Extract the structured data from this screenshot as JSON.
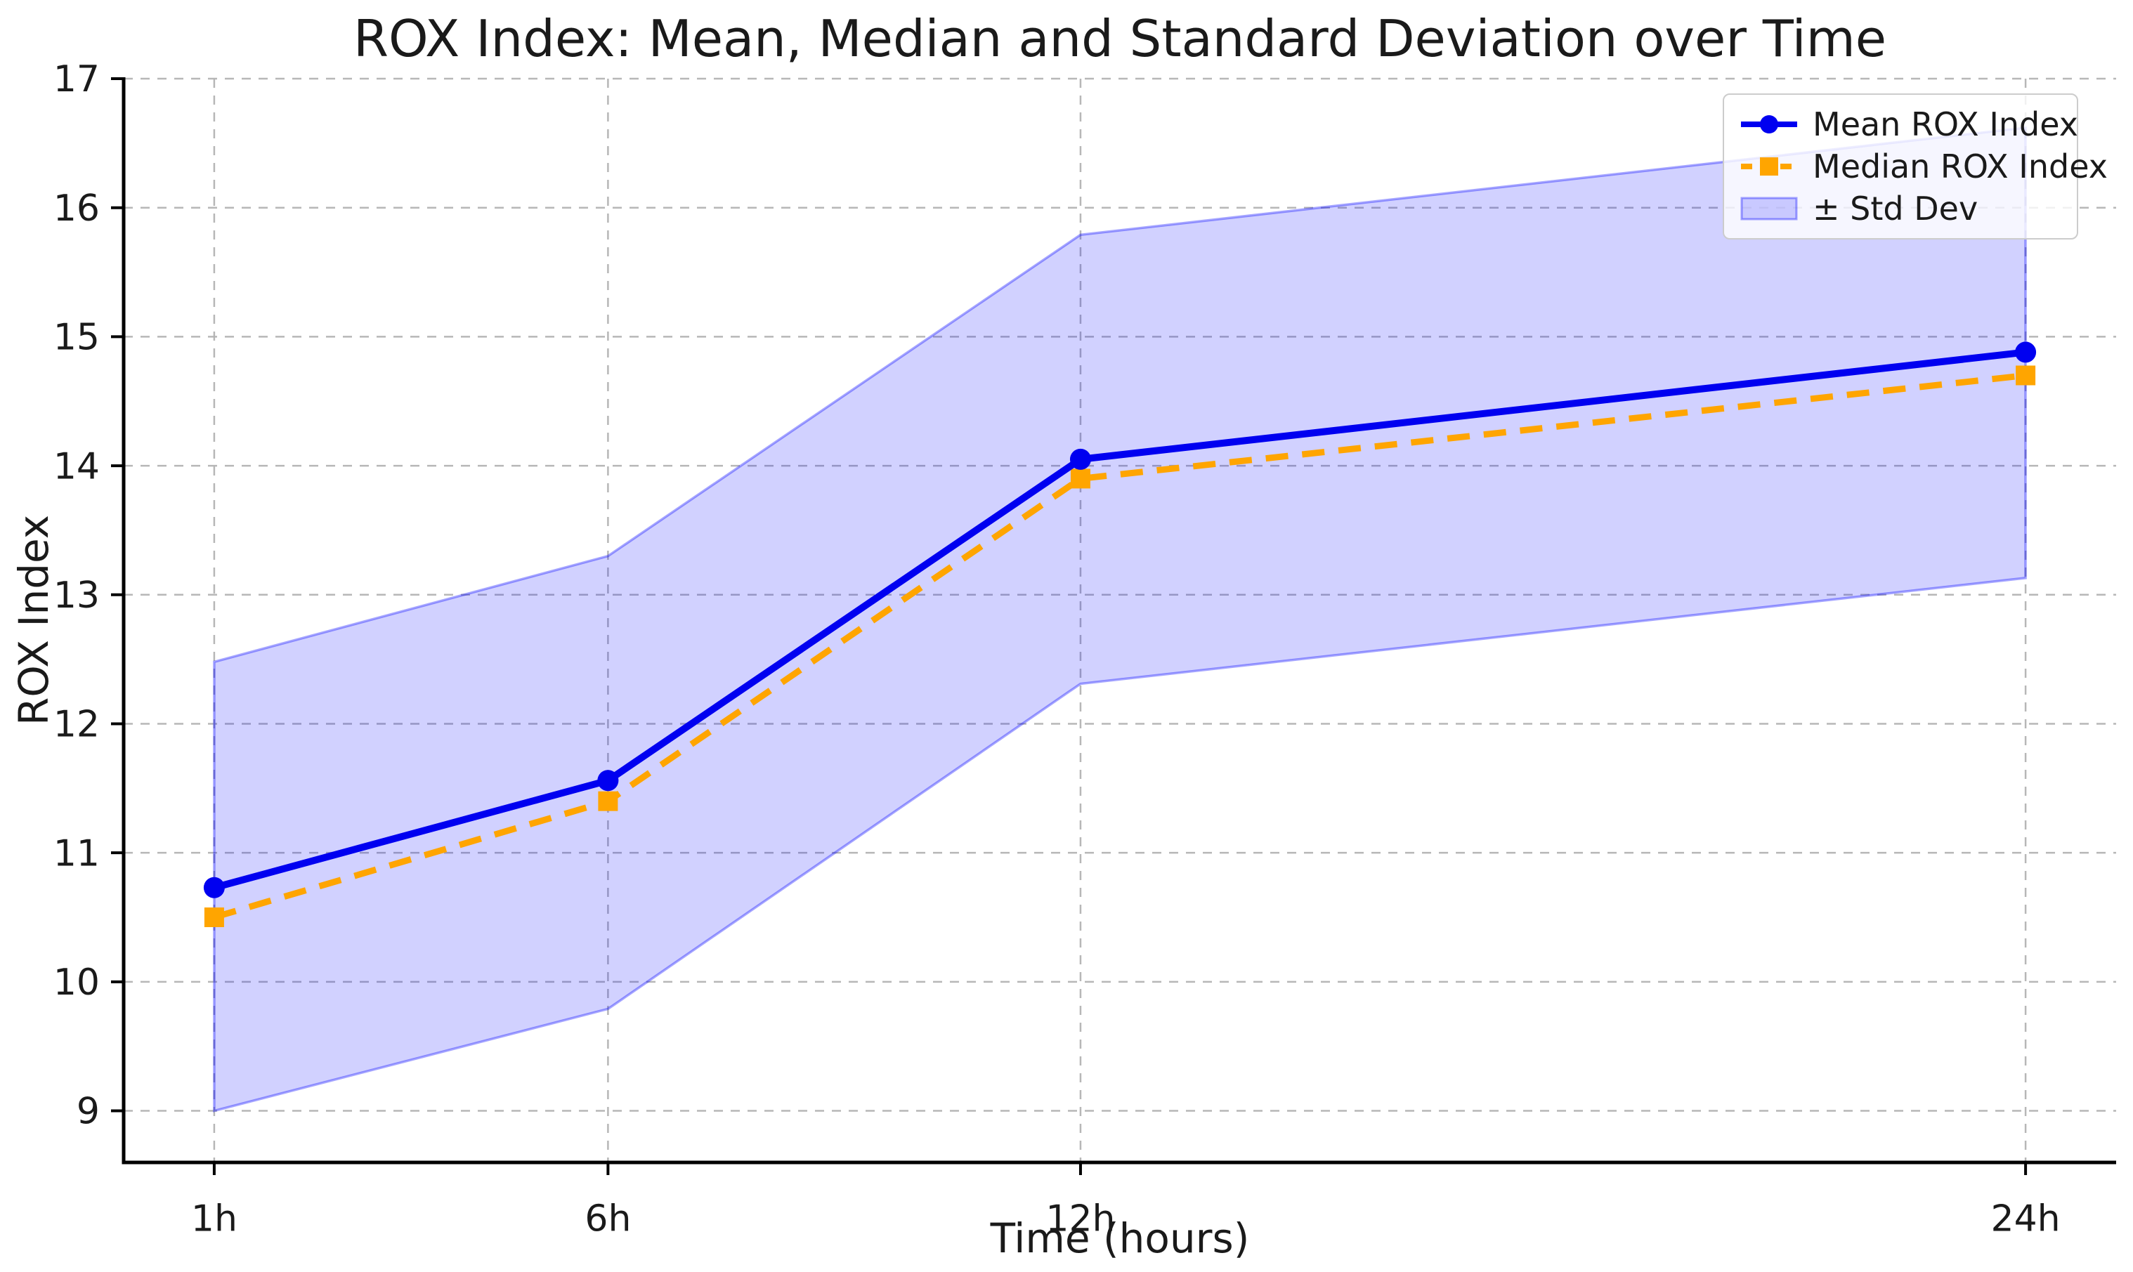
{
  "chart_data": {
    "type": "line",
    "title": "ROX Index: Mean, Median and Standard Deviation over Time",
    "xlabel": "Time (hours)",
    "ylabel": "ROX Index",
    "categories": [
      "1h",
      "6h",
      "12h",
      "24h"
    ],
    "x_hours": [
      1,
      6,
      12,
      24
    ],
    "series": [
      {
        "name": "Mean ROX Index",
        "values": [
          10.73,
          11.56,
          14.05,
          14.88
        ],
        "color": "#0000f0",
        "linestyle": "solid",
        "marker": "circle"
      },
      {
        "name": "Median ROX Index",
        "values": [
          10.5,
          11.4,
          13.9,
          14.7
        ],
        "color": "#ffa500",
        "linestyle": "dashed",
        "marker": "square"
      }
    ],
    "band": {
      "name": "± Std Dev",
      "upper": [
        12.48,
        13.3,
        15.79,
        16.62
      ],
      "lower": [
        9.0,
        9.79,
        12.31,
        13.13
      ],
      "fill": "rgba(0,0,255,0.18)",
      "edge": "rgba(0,0,255,0.35)"
    },
    "xlim": [
      -0.15,
      25.15
    ],
    "ylim": [
      8.6,
      17.0
    ],
    "yticks": [
      9,
      10,
      11,
      12,
      13,
      14,
      15,
      16,
      17
    ],
    "grid": true,
    "grid_style": "dashed",
    "legend_position": "upper right",
    "background": "#ffffff"
  },
  "legend_note": "legend labels are bound from chart_data.series names and chart_data.band.name"
}
